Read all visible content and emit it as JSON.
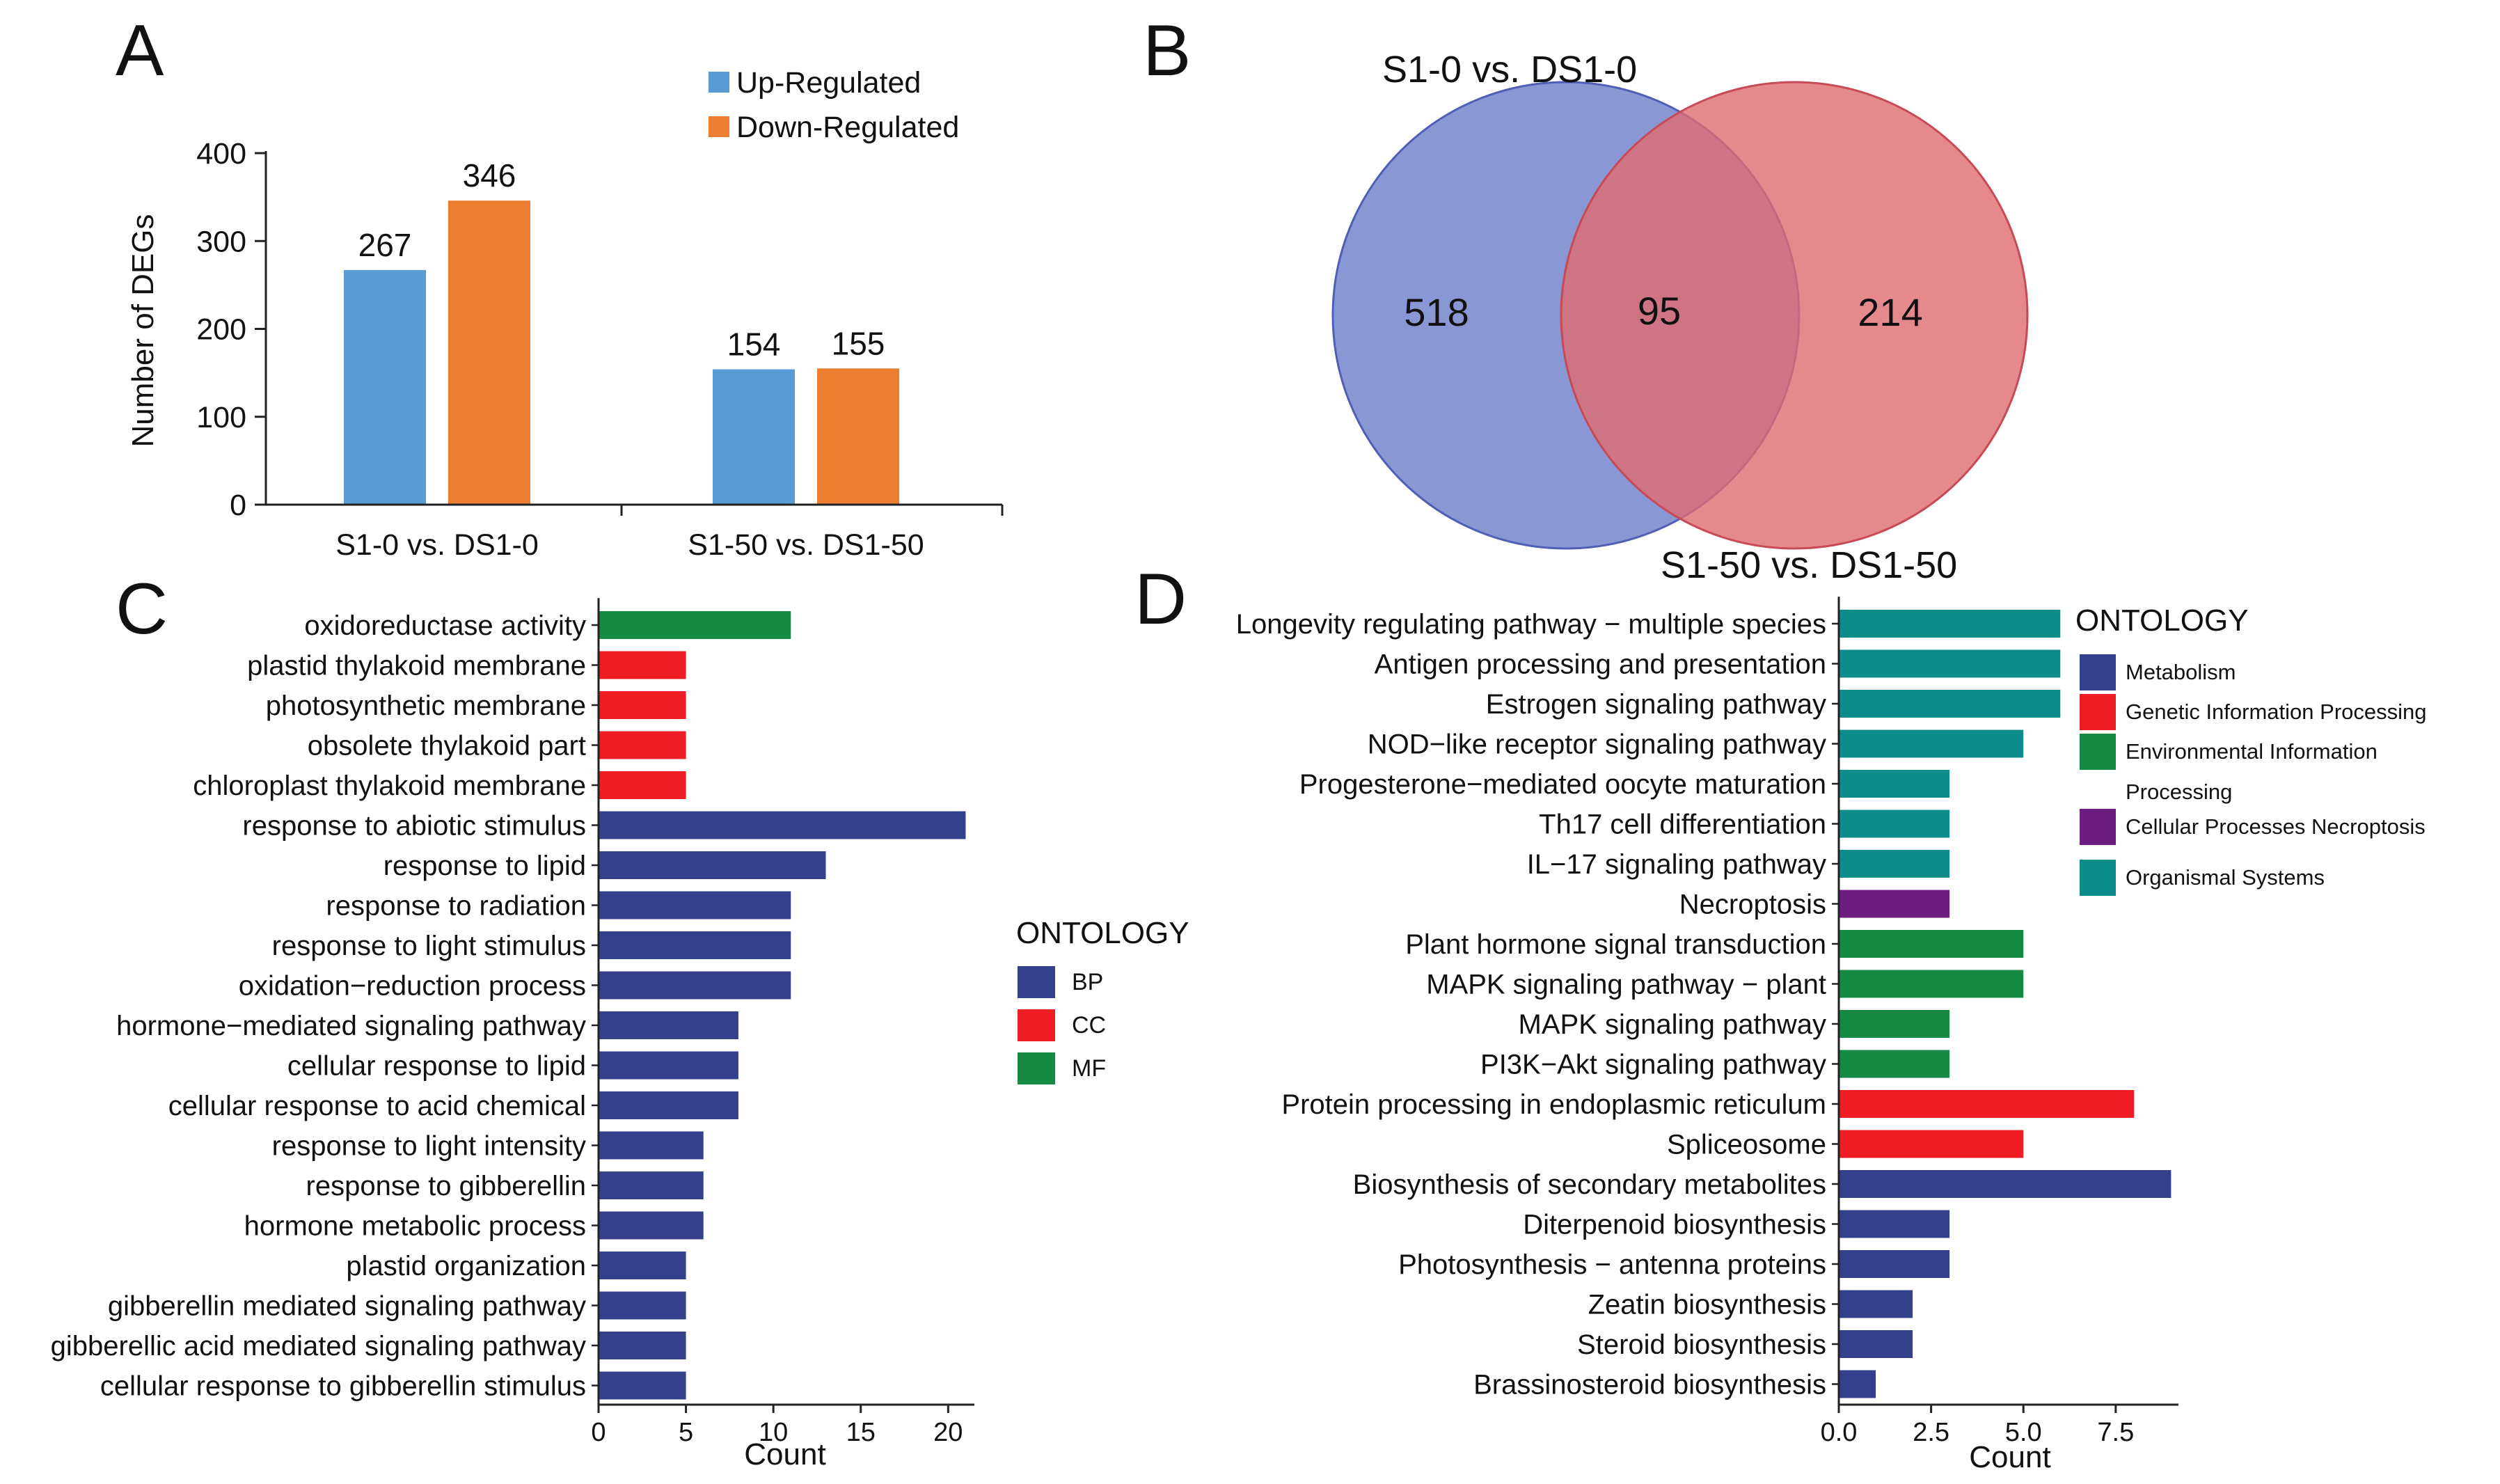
{
  "panels": {
    "a": "A",
    "b": "B",
    "c": "C",
    "d": "D"
  },
  "chart_data": [
    {
      "id": "A",
      "type": "bar",
      "categories": [
        "S1-0 vs. DS1-0",
        "S1-50 vs. DS1-50"
      ],
      "series": [
        {
          "name": "Up-Regulated",
          "color": "#5B9BD5",
          "values": [
            267,
            154
          ]
        },
        {
          "name": "Down-Regulated",
          "color": "#ED7D31",
          "values": [
            346,
            155
          ]
        }
      ],
      "ylabel": "Number of DEGs",
      "ylim": [
        0,
        400
      ],
      "yticks": [
        0,
        100,
        200,
        300,
        400
      ],
      "legend": "top-right"
    },
    {
      "id": "B",
      "type": "venn",
      "sets": [
        {
          "name": "S1-0 vs. DS1-0",
          "color": "#6F80CC",
          "only": 518
        },
        {
          "name": "S1-50 vs. DS1-50",
          "color": "#E06B70",
          "only": 214
        }
      ],
      "intersection": 95
    },
    {
      "id": "C",
      "type": "bar",
      "orientation": "horizontal",
      "xlabel": "Count",
      "xlim": [
        0,
        21.5
      ],
      "xticks": [
        0,
        5,
        10,
        15,
        20
      ],
      "legend_title": "ONTOLOGY",
      "groups": [
        {
          "name": "BP",
          "color": "#34408C"
        },
        {
          "name": "CC",
          "color": "#EE1C25"
        },
        {
          "name": "MF",
          "color": "#168A45"
        }
      ],
      "bars": [
        {
          "label": "oxidoreductase activity",
          "value": 11,
          "group": "MF"
        },
        {
          "label": "plastid thylakoid membrane",
          "value": 5,
          "group": "CC"
        },
        {
          "label": "photosynthetic membrane",
          "value": 5,
          "group": "CC"
        },
        {
          "label": "obsolete thylakoid part",
          "value": 5,
          "group": "CC"
        },
        {
          "label": "chloroplast thylakoid membrane",
          "value": 5,
          "group": "CC"
        },
        {
          "label": "response to abiotic stimulus",
          "value": 21,
          "group": "BP"
        },
        {
          "label": "response to lipid",
          "value": 13,
          "group": "BP"
        },
        {
          "label": "response to radiation",
          "value": 11,
          "group": "BP"
        },
        {
          "label": "response to light stimulus",
          "value": 11,
          "group": "BP"
        },
        {
          "label": "oxidation−reduction process",
          "value": 11,
          "group": "BP"
        },
        {
          "label": "hormone−mediated signaling pathway",
          "value": 8,
          "group": "BP"
        },
        {
          "label": "cellular response to lipid",
          "value": 8,
          "group": "BP"
        },
        {
          "label": "cellular response to acid chemical",
          "value": 8,
          "group": "BP"
        },
        {
          "label": "response to light intensity",
          "value": 6,
          "group": "BP"
        },
        {
          "label": "response to gibberellin",
          "value": 6,
          "group": "BP"
        },
        {
          "label": "hormone metabolic process",
          "value": 6,
          "group": "BP"
        },
        {
          "label": "plastid organization",
          "value": 5,
          "group": "BP"
        },
        {
          "label": "gibberellin mediated signaling pathway",
          "value": 5,
          "group": "BP"
        },
        {
          "label": "gibberellic acid mediated signaling pathway",
          "value": 5,
          "group": "BP"
        },
        {
          "label": "cellular response to gibberellin stimulus",
          "value": 5,
          "group": "BP"
        }
      ]
    },
    {
      "id": "D",
      "type": "bar",
      "orientation": "horizontal",
      "xlabel": "Count",
      "xlim": [
        0,
        9.2
      ],
      "xticks": [
        0,
        2.5,
        5,
        7.5
      ],
      "xtick_labels": [
        "0.0",
        "2.5",
        "5.0",
        "7.5"
      ],
      "legend_title": "ONTOLOGY",
      "legend_entries": [
        {
          "lines": [
            "Metabolism"
          ],
          "color": "#34408C"
        },
        {
          "lines": [
            "Genetic Information Processing"
          ],
          "color": "#EE1C25"
        },
        {
          "lines": [
            "Environmental Information",
            "Processing"
          ],
          "color": "#168A45"
        },
        {
          "lines": [
            "Cellular Processes  Necroptosis"
          ],
          "color": "#6B1E7F"
        },
        {
          "lines": [
            "Organismal Systems"
          ],
          "color": "#0E8C8C"
        }
      ],
      "group_colors": {
        "M": "#34408C",
        "G": "#EE1C25",
        "E": "#168A45",
        "C": "#6B1E7F",
        "O": "#0E8C8C"
      },
      "bars": [
        {
          "label": "Longevity regulating pathway − multiple species",
          "value": 6,
          "group": "O"
        },
        {
          "label": "Antigen processing and presentation",
          "value": 6,
          "group": "O"
        },
        {
          "label": "Estrogen signaling pathway",
          "value": 6,
          "group": "O"
        },
        {
          "label": "NOD−like receptor signaling pathway",
          "value": 5,
          "group": "O"
        },
        {
          "label": "Progesterone−mediated oocyte maturation",
          "value": 3,
          "group": "O"
        },
        {
          "label": "Th17 cell differentiation",
          "value": 3,
          "group": "O"
        },
        {
          "label": "IL−17 signaling pathway",
          "value": 3,
          "group": "O"
        },
        {
          "label": "Necroptosis",
          "value": 3,
          "group": "C"
        },
        {
          "label": "Plant hormone signal transduction",
          "value": 5,
          "group": "E"
        },
        {
          "label": "MAPK signaling pathway − plant",
          "value": 5,
          "group": "E"
        },
        {
          "label": "MAPK signaling pathway",
          "value": 3,
          "group": "E"
        },
        {
          "label": "PI3K−Akt signaling pathway",
          "value": 3,
          "group": "E"
        },
        {
          "label": "Protein processing in endoplasmic reticulum",
          "value": 8,
          "group": "G"
        },
        {
          "label": "Spliceosome",
          "value": 5,
          "group": "G"
        },
        {
          "label": "Biosynthesis of secondary metabolites",
          "value": 9,
          "group": "M"
        },
        {
          "label": "Diterpenoid biosynthesis",
          "value": 3,
          "group": "M"
        },
        {
          "label": "Photosynthesis − antenna proteins",
          "value": 3,
          "group": "M"
        },
        {
          "label": "Zeatin biosynthesis",
          "value": 2,
          "group": "M"
        },
        {
          "label": "Steroid biosynthesis",
          "value": 2,
          "group": "M"
        },
        {
          "label": "Brassinosteroid biosynthesis",
          "value": 1,
          "group": "M"
        }
      ]
    }
  ]
}
